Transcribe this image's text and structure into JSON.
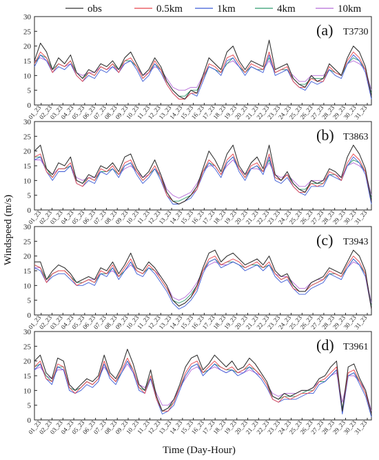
{
  "chart_data": {
    "type": "line",
    "xlabel": "Time (Day-Hour)",
    "ylabel": "Windspeed (m/s)",
    "ylim": [
      0,
      30
    ],
    "yticks": [
      0,
      5,
      10,
      15,
      20,
      25,
      30
    ],
    "xlim": [
      0,
      31
    ],
    "xticks": [
      "01_23",
      "02_23",
      "03_23",
      "04_23",
      "05_23",
      "06_23",
      "07_23",
      "08_23",
      "09_23",
      "10_23",
      "11_23",
      "12_23",
      "13_23",
      "14_23",
      "15_23",
      "16_23",
      "17_23",
      "18_23",
      "19_23",
      "20_23",
      "21_23",
      "22_23",
      "23_23",
      "24_23",
      "25_23",
      "26_23",
      "27_23",
      "28_23",
      "29_23",
      "30_23",
      "31_23"
    ],
    "legend": {
      "placement": "top",
      "entries": [
        {
          "name": "obs",
          "color": "#333333"
        },
        {
          "name": "0.5km",
          "color": "#e8434b"
        },
        {
          "name": "1km",
          "color": "#3b5bd6"
        },
        {
          "name": "4km",
          "color": "#2e9a6e"
        },
        {
          "name": "10km",
          "color": "#b56ad8"
        }
      ]
    },
    "panels": [
      {
        "label": "(a)",
        "station": "T3730",
        "obs": [
          15,
          21,
          18,
          12,
          16,
          14,
          17,
          11,
          9,
          12,
          11,
          14,
          13,
          15,
          12,
          16,
          18,
          14,
          10,
          12,
          16,
          13,
          8,
          5,
          3,
          2,
          5,
          4,
          10,
          16,
          14,
          12,
          18,
          20,
          15,
          12,
          15,
          14,
          13,
          22,
          12,
          13,
          14,
          9,
          7,
          6,
          10,
          8,
          9,
          14,
          12,
          10,
          16,
          20,
          18,
          13,
          3
        ],
        "m05": [
          14,
          18,
          16,
          11,
          14,
          13,
          15,
          10,
          8,
          11,
          10,
          13,
          12,
          14,
          11,
          15,
          16,
          13,
          9,
          11,
          15,
          12,
          7,
          4,
          2,
          2,
          4,
          4,
          9,
          14,
          13,
          11,
          16,
          17,
          14,
          11,
          14,
          13,
          12,
          18,
          11,
          12,
          13,
          8,
          6,
          6,
          9,
          8,
          8,
          13,
          11,
          10,
          15,
          18,
          16,
          12,
          3
        ],
        "m1": [
          13,
          17,
          15,
          11,
          13,
          12,
          14,
          10,
          8,
          10,
          9,
          12,
          11,
          13,
          11,
          14,
          15,
          12,
          8,
          10,
          14,
          11,
          7,
          4,
          2,
          2,
          4,
          3,
          8,
          13,
          12,
          10,
          15,
          16,
          13,
          10,
          13,
          12,
          11,
          17,
          10,
          11,
          12,
          8,
          6,
          5,
          8,
          7,
          8,
          12,
          10,
          9,
          14,
          17,
          15,
          11,
          2
        ],
        "m4": [
          14,
          17,
          16,
          12,
          14,
          13,
          15,
          11,
          9,
          11,
          10,
          13,
          12,
          14,
          12,
          15,
          15,
          13,
          9,
          11,
          14,
          12,
          8,
          5,
          3,
          3,
          5,
          5,
          9,
          13,
          12,
          11,
          14,
          16,
          13,
          11,
          13,
          12,
          12,
          16,
          11,
          12,
          12,
          9,
          7,
          7,
          9,
          9,
          9,
          12,
          11,
          10,
          14,
          16,
          15,
          12,
          4
        ],
        "m10": [
          15,
          16,
          15,
          12,
          14,
          13,
          14,
          11,
          10,
          11,
          11,
          13,
          12,
          13,
          12,
          14,
          15,
          13,
          10,
          11,
          13,
          12,
          9,
          6,
          5,
          5,
          6,
          6,
          10,
          13,
          12,
          11,
          14,
          15,
          13,
          11,
          13,
          12,
          12,
          15,
          11,
          12,
          12,
          10,
          8,
          8,
          10,
          10,
          10,
          12,
          11,
          10,
          14,
          15,
          14,
          12,
          5
        ]
      },
      {
        "label": "(b)",
        "station": "T3863",
        "obs": [
          20,
          22,
          14,
          12,
          16,
          15,
          18,
          10,
          9,
          12,
          11,
          15,
          14,
          16,
          13,
          18,
          19,
          14,
          11,
          13,
          17,
          12,
          6,
          3,
          2,
          3,
          5,
          8,
          14,
          20,
          17,
          13,
          19,
          22,
          15,
          12,
          16,
          18,
          14,
          22,
          12,
          10,
          13,
          9,
          7,
          6,
          10,
          9,
          10,
          14,
          13,
          11,
          18,
          22,
          19,
          14,
          3
        ],
        "m05": [
          18,
          19,
          13,
          11,
          14,
          14,
          16,
          9,
          8,
          11,
          10,
          14,
          13,
          15,
          12,
          16,
          17,
          13,
          10,
          12,
          15,
          11,
          5,
          3,
          2,
          3,
          5,
          7,
          13,
          17,
          15,
          12,
          17,
          19,
          14,
          11,
          15,
          16,
          13,
          19,
          11,
          10,
          12,
          8,
          6,
          6,
          9,
          8,
          9,
          13,
          12,
          10,
          16,
          19,
          17,
          13,
          3
        ],
        "m1": [
          17,
          18,
          13,
          10,
          13,
          13,
          15,
          9,
          8,
          10,
          9,
          13,
          12,
          14,
          11,
          15,
          16,
          12,
          9,
          11,
          14,
          10,
          5,
          2,
          2,
          3,
          4,
          7,
          12,
          16,
          14,
          11,
          16,
          18,
          13,
          10,
          14,
          15,
          12,
          18,
          10,
          9,
          11,
          8,
          6,
          5,
          8,
          8,
          8,
          12,
          11,
          10,
          15,
          18,
          16,
          12,
          2
        ],
        "m4": [
          18,
          18,
          14,
          11,
          14,
          14,
          15,
          10,
          9,
          11,
          10,
          13,
          13,
          14,
          12,
          15,
          16,
          13,
          10,
          12,
          14,
          11,
          6,
          3,
          3,
          4,
          5,
          8,
          13,
          16,
          15,
          12,
          16,
          18,
          14,
          11,
          14,
          15,
          13,
          17,
          11,
          10,
          12,
          9,
          7,
          7,
          9,
          9,
          9,
          12,
          12,
          10,
          15,
          17,
          16,
          13,
          4
        ],
        "m10": [
          17,
          17,
          14,
          12,
          14,
          14,
          15,
          11,
          10,
          11,
          11,
          13,
          13,
          14,
          12,
          14,
          15,
          13,
          11,
          12,
          14,
          12,
          7,
          5,
          4,
          5,
          6,
          9,
          13,
          15,
          15,
          12,
          15,
          17,
          14,
          12,
          14,
          14,
          13,
          16,
          12,
          11,
          12,
          10,
          8,
          8,
          10,
          10,
          10,
          12,
          12,
          11,
          15,
          16,
          15,
          13,
          5
        ]
      },
      {
        "label": "(c)",
        "station": "T3943",
        "obs": [
          18,
          18,
          12,
          15,
          17,
          16,
          14,
          11,
          12,
          13,
          12,
          16,
          15,
          18,
          14,
          17,
          21,
          16,
          15,
          18,
          16,
          13,
          10,
          5,
          3,
          4,
          6,
          10,
          16,
          21,
          22,
          18,
          20,
          21,
          19,
          17,
          18,
          19,
          17,
          20,
          15,
          13,
          14,
          10,
          8,
          8,
          11,
          12,
          13,
          16,
          15,
          14,
          18,
          22,
          20,
          15,
          2
        ],
        "m05": [
          17,
          16,
          11,
          14,
          15,
          15,
          13,
          10,
          11,
          12,
          11,
          15,
          14,
          17,
          13,
          16,
          19,
          15,
          14,
          17,
          15,
          12,
          9,
          5,
          3,
          4,
          6,
          9,
          15,
          19,
          20,
          17,
          18,
          19,
          18,
          16,
          17,
          18,
          16,
          18,
          14,
          12,
          13,
          9,
          8,
          8,
          10,
          11,
          12,
          15,
          14,
          13,
          17,
          20,
          18,
          14,
          2
        ],
        "m1": [
          16,
          15,
          11,
          13,
          14,
          14,
          12,
          10,
          10,
          11,
          10,
          14,
          13,
          16,
          12,
          15,
          18,
          14,
          13,
          16,
          14,
          11,
          8,
          4,
          2,
          3,
          5,
          8,
          14,
          18,
          19,
          16,
          17,
          18,
          17,
          15,
          16,
          17,
          15,
          17,
          13,
          11,
          12,
          9,
          7,
          7,
          9,
          10,
          11,
          14,
          13,
          12,
          16,
          19,
          17,
          13,
          2
        ],
        "m4": [
          17,
          16,
          12,
          14,
          15,
          15,
          13,
          11,
          11,
          12,
          11,
          14,
          14,
          16,
          13,
          15,
          18,
          15,
          14,
          16,
          15,
          12,
          9,
          5,
          4,
          5,
          7,
          10,
          15,
          18,
          19,
          17,
          18,
          18,
          17,
          16,
          17,
          17,
          16,
          17,
          14,
          12,
          13,
          10,
          8,
          8,
          10,
          11,
          12,
          14,
          14,
          13,
          16,
          19,
          17,
          14,
          3
        ],
        "m10": [
          16,
          16,
          12,
          14,
          15,
          15,
          13,
          11,
          11,
          12,
          12,
          14,
          14,
          15,
          13,
          15,
          17,
          15,
          14,
          16,
          15,
          13,
          10,
          6,
          5,
          6,
          8,
          11,
          15,
          17,
          18,
          17,
          17,
          18,
          17,
          16,
          17,
          17,
          16,
          17,
          14,
          13,
          13,
          11,
          9,
          9,
          11,
          12,
          12,
          14,
          14,
          13,
          16,
          18,
          17,
          14,
          4
        ]
      },
      {
        "label": "(d)",
        "station": "T3961",
        "obs": [
          20,
          22,
          16,
          14,
          21,
          20,
          12,
          10,
          12,
          14,
          13,
          15,
          22,
          16,
          14,
          18,
          24,
          19,
          12,
          10,
          17,
          8,
          3,
          4,
          7,
          12,
          18,
          21,
          22,
          17,
          19,
          22,
          20,
          18,
          20,
          17,
          18,
          21,
          19,
          16,
          13,
          8,
          7,
          9,
          8,
          9,
          10,
          10,
          11,
          14,
          15,
          18,
          20,
          3,
          18,
          19,
          14,
          10,
          2
        ],
        "m05": [
          18,
          20,
          14,
          13,
          19,
          18,
          11,
          9,
          11,
          13,
          12,
          14,
          20,
          15,
          13,
          17,
          21,
          17,
          11,
          9,
          15,
          7,
          3,
          3,
          6,
          11,
          16,
          19,
          20,
          16,
          18,
          20,
          18,
          17,
          18,
          16,
          17,
          19,
          17,
          15,
          12,
          7,
          6,
          8,
          7,
          8,
          9,
          9,
          10,
          13,
          14,
          16,
          18,
          3,
          16,
          17,
          13,
          9,
          2
        ],
        "m1": [
          17,
          19,
          14,
          12,
          18,
          17,
          10,
          9,
          10,
          12,
          11,
          13,
          19,
          14,
          12,
          16,
          20,
          16,
          10,
          9,
          14,
          7,
          2,
          3,
          5,
          10,
          15,
          18,
          19,
          15,
          17,
          19,
          17,
          16,
          17,
          15,
          16,
          18,
          16,
          14,
          11,
          7,
          6,
          7,
          7,
          7,
          8,
          9,
          9,
          12,
          13,
          15,
          17,
          2,
          15,
          16,
          12,
          8,
          1
        ],
        "m4": [
          18,
          19,
          15,
          13,
          18,
          18,
          11,
          10,
          11,
          13,
          12,
          14,
          19,
          15,
          13,
          16,
          20,
          17,
          11,
          10,
          15,
          8,
          3,
          4,
          6,
          11,
          15,
          18,
          19,
          16,
          17,
          19,
          18,
          17,
          17,
          16,
          17,
          18,
          17,
          15,
          12,
          8,
          7,
          8,
          8,
          8,
          9,
          10,
          10,
          13,
          13,
          15,
          17,
          4,
          15,
          16,
          13,
          9,
          2
        ],
        "m10": [
          17,
          18,
          15,
          14,
          17,
          17,
          12,
          10,
          11,
          13,
          12,
          14,
          18,
          15,
          13,
          16,
          19,
          16,
          12,
          11,
          14,
          9,
          5,
          5,
          7,
          11,
          14,
          17,
          18,
          16,
          17,
          18,
          17,
          16,
          17,
          16,
          16,
          17,
          16,
          15,
          12,
          9,
          8,
          9,
          9,
          9,
          10,
          10,
          11,
          13,
          13,
          15,
          16,
          6,
          15,
          15,
          13,
          10,
          3
        ]
      }
    ]
  }
}
